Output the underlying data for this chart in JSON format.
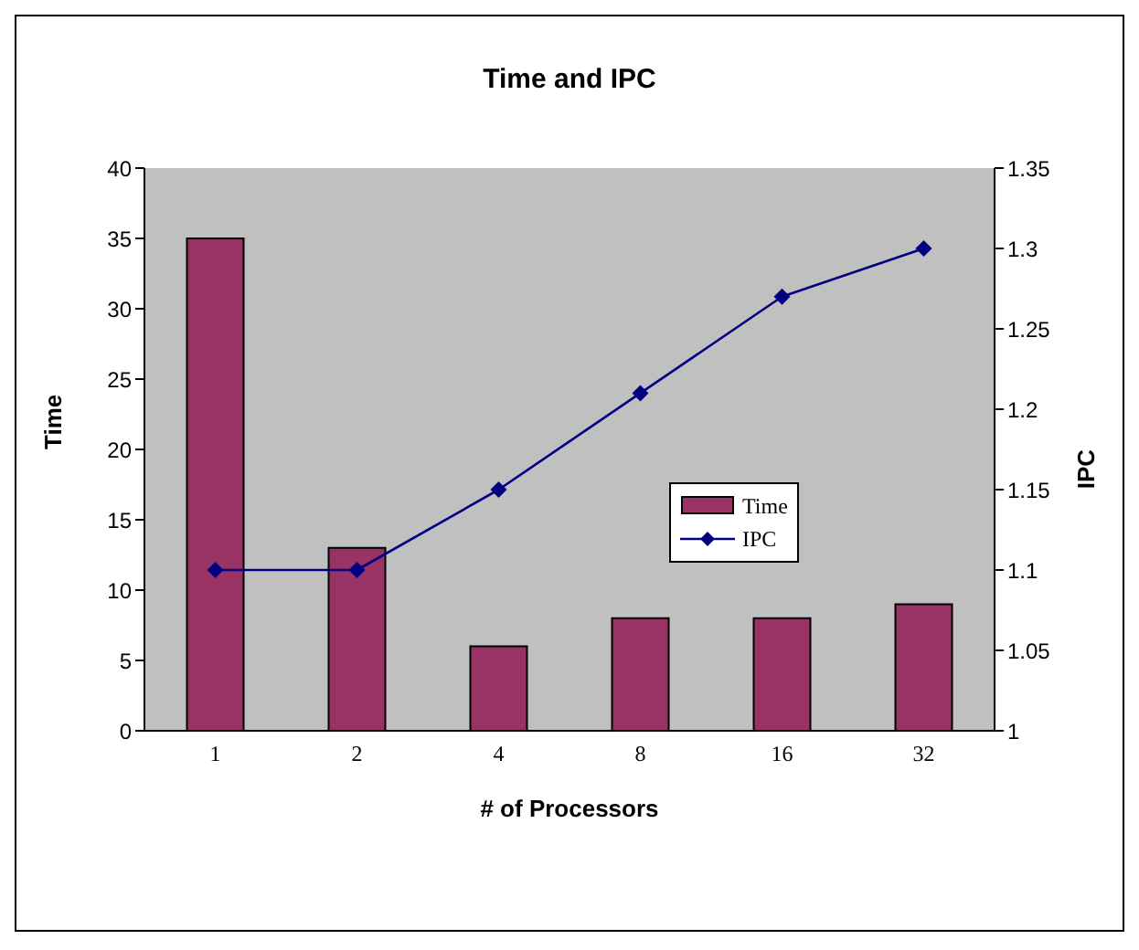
{
  "chart_data": {
    "type": "bar",
    "title": "Time and IPC",
    "xlabel": "# of Processors",
    "ylabel": "Time",
    "y2label": "IPC",
    "categories": [
      "1",
      "2",
      "4",
      "8",
      "16",
      "32"
    ],
    "series": [
      {
        "name": "Time",
        "color": "#993366",
        "values": [
          35,
          13,
          6,
          8,
          8,
          9
        ]
      },
      {
        "name": "IPC",
        "type": "line",
        "axis": "y2",
        "color": "#000080",
        "marker": "diamond",
        "values": [
          1.1,
          1.1,
          1.15,
          1.21,
          1.27,
          1.3
        ]
      }
    ],
    "ylim": [
      0,
      40
    ],
    "yticks": [
      0,
      5,
      10,
      15,
      20,
      25,
      30,
      35,
      40
    ],
    "y2lim": [
      1,
      1.35
    ],
    "y2ticks": [
      1,
      1.05,
      1.1,
      1.15,
      1.2,
      1.25,
      1.3,
      1.35
    ],
    "grid": false,
    "legend": "right"
  }
}
